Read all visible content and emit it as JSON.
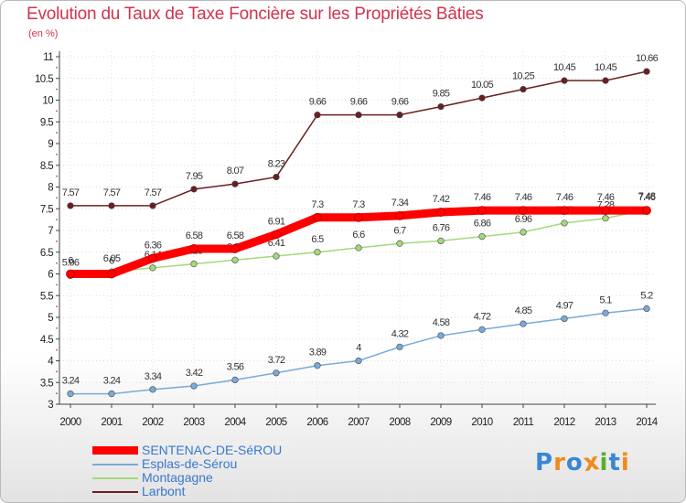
{
  "chart_data": {
    "type": "line",
    "title": "Evolution du Taux de Taxe Foncière sur les Propriétés Bâties",
    "subtitle": "(en %)",
    "xlabel": "",
    "ylabel": "",
    "ylim": [
      3,
      11
    ],
    "yticks": [
      "3",
      "3.5",
      "4",
      "4.5",
      "5",
      "5.5",
      "6",
      "6.5",
      "7",
      "7.5",
      "8",
      "8.5",
      "9",
      "9.5",
      "10",
      "10.5",
      "11"
    ],
    "categories": [
      "2000",
      "2001",
      "2002",
      "2003",
      "2004",
      "2005",
      "2006",
      "2007",
      "2008",
      "2009",
      "2010",
      "2011",
      "2012",
      "2013",
      "2014"
    ],
    "series": [
      {
        "name": "Larbont",
        "color": "#6b1e22",
        "labels": [
          "7.57",
          "7.57",
          "7.57",
          "7.95",
          "8.07",
          "8.23",
          "9.66",
          "9.66",
          "9.66",
          "9.85",
          "10.05",
          "10.25",
          "10.45",
          "10.45",
          "10.66"
        ],
        "values": [
          7.57,
          7.57,
          7.57,
          7.95,
          8.07,
          8.23,
          9.66,
          9.66,
          9.66,
          9.85,
          10.05,
          10.25,
          10.45,
          10.45,
          10.66
        ]
      },
      {
        "name": "Montagagne",
        "color": "#a4d97c",
        "labels": [
          "5.96",
          "6.05",
          "6.14",
          "6.23",
          "6.32",
          "6.41",
          "6.5",
          "6.6",
          "6.7",
          "6.76",
          "6.86",
          "6.96",
          "7.17",
          "7.28",
          "7.48"
        ],
        "values": [
          5.96,
          6.05,
          6.14,
          6.23,
          6.32,
          6.41,
          6.5,
          6.6,
          6.7,
          6.76,
          6.86,
          6.96,
          7.17,
          7.28,
          7.48
        ]
      },
      {
        "name": "Esplas-de-Sérou",
        "color": "#7aaad8",
        "labels": [
          "3.24",
          "3.24",
          "3.34",
          "3.42",
          "3.56",
          "3.72",
          "3.89",
          "4",
          "4.32",
          "4.58",
          "4.72",
          "4.85",
          "4.97",
          "5.1",
          "5.2"
        ],
        "values": [
          3.24,
          3.24,
          3.34,
          3.42,
          3.56,
          3.72,
          3.89,
          4.0,
          4.32,
          4.58,
          4.72,
          4.85,
          4.97,
          5.1,
          5.2
        ]
      },
      {
        "name": "SENTENAC-DE-SéROU",
        "color": "#ff0000",
        "labels": [
          "6",
          "6",
          "6.36",
          "6.58",
          "6.58",
          "6.91",
          "7.3",
          "7.3",
          "7.34",
          "7.42",
          "7.46",
          "7.46",
          "7.46",
          "7.46",
          "7.46"
        ],
        "values": [
          6.0,
          6.0,
          6.36,
          6.58,
          6.58,
          6.91,
          7.3,
          7.3,
          7.34,
          7.42,
          7.46,
          7.46,
          7.46,
          7.46,
          7.46
        ]
      }
    ],
    "legend": {
      "position": "bottom-left",
      "entries": [
        "SENTENAC-DE-SéROU",
        "Esplas-de-Sérou",
        "Montagagne",
        "Larbont"
      ]
    }
  },
  "branding": {
    "logo_text": "Proxiti",
    "letter_colors": [
      "#3b86d4",
      "#f08a1c",
      "#3b86d4",
      "#f08a1c",
      "#5aae2a",
      "#3b86d4",
      "#f08a1c"
    ]
  }
}
